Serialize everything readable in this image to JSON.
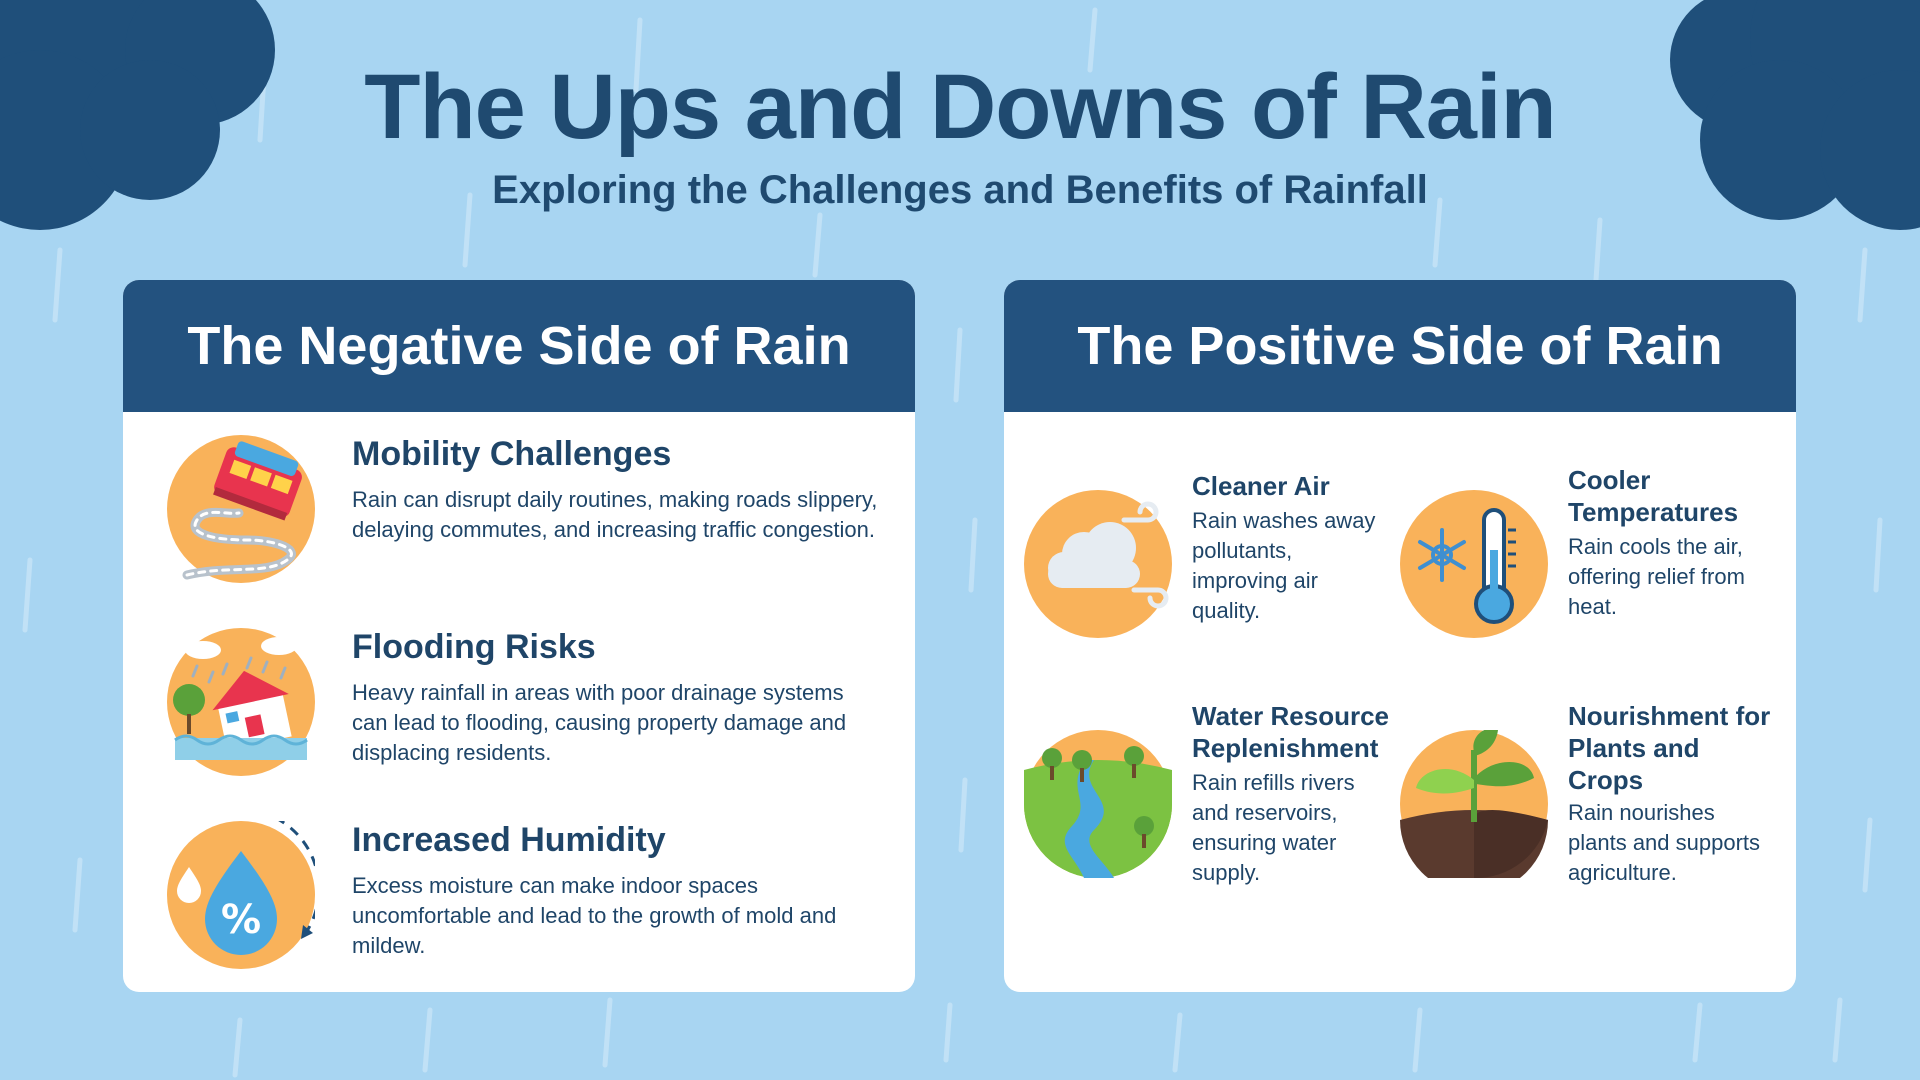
{
  "header": {
    "title": "The Ups and Downs of Rain",
    "subtitle": "Exploring the Challenges and Benefits of Rainfall"
  },
  "negative": {
    "heading": "The Negative Side of Rain",
    "items": [
      {
        "title": "Mobility Challenges",
        "text": "Rain can disrupt daily routines, making roads slippery, delaying commutes, and increasing traffic congestion.",
        "icon": "skidding-car-icon"
      },
      {
        "title": "Flooding Risks",
        "text": "Heavy rainfall in areas with poor drainage systems can lead to flooding, causing property damage and displacing residents.",
        "icon": "flooded-house-icon"
      },
      {
        "title": "Increased Humidity",
        "text": "Excess moisture can make indoor spaces uncomfortable and lead to the growth of mold and mildew.",
        "icon": "humidity-drop-icon"
      }
    ]
  },
  "positive": {
    "heading": "The Positive Side of Rain",
    "items": [
      {
        "title": "Cleaner Air",
        "text": "Rain washes away pollutants, improving air quality.",
        "icon": "cloud-wind-icon"
      },
      {
        "title": "Cooler Temperatures",
        "text": "Rain cools the air, offering relief from heat.",
        "icon": "thermometer-snowflake-icon"
      },
      {
        "title": "Water Resource Replenishment",
        "text": "Rain refills rivers and reservoirs, ensuring water supply.",
        "icon": "river-landscape-icon"
      },
      {
        "title": "Nourishment for Plants and Crops",
        "text": "Rain nourishes plants and supports agriculture.",
        "icon": "sprout-icon"
      }
    ]
  },
  "colors": {
    "background": "#a8d5f2",
    "header_band": "#23527f",
    "cloud": "#1f4f7a",
    "icon_circle": "#f9b25a",
    "text": "#1f4568"
  }
}
